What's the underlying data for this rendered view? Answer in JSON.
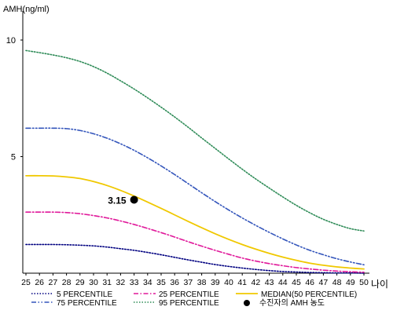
{
  "chart_data": {
    "type": "line",
    "ylabel": "AMH(ng/ml)",
    "xlabel": "나이",
    "x": [
      25,
      26,
      27,
      28,
      29,
      30,
      31,
      32,
      33,
      34,
      35,
      36,
      37,
      38,
      39,
      40,
      41,
      42,
      43,
      44,
      45,
      46,
      47,
      48,
      49,
      50
    ],
    "x_ticks": [
      "25",
      "26",
      "27",
      "28",
      "29",
      "30",
      "31",
      "32",
      "33",
      "34",
      "35",
      "36",
      "37",
      "38",
      "39",
      "40",
      "41",
      "42",
      "43",
      "44",
      "45",
      "46",
      "47",
      "48",
      "49",
      "50"
    ],
    "y_ticks": [
      "5",
      "10"
    ],
    "ylim": [
      0,
      11
    ],
    "xlim": [
      25,
      50
    ],
    "grid": false,
    "legend_position": "bottom",
    "series": [
      {
        "name": "5 PERCENTILE",
        "color": "#000080",
        "dash": "dotted",
        "values": [
          1.23,
          1.23,
          1.23,
          1.22,
          1.2,
          1.17,
          1.12,
          1.05,
          0.98,
          0.89,
          0.79,
          0.68,
          0.57,
          0.47,
          0.37,
          0.29,
          0.22,
          0.16,
          0.11,
          0.07,
          0.05,
          0.03,
          0.02,
          0.01,
          0.01,
          0.0
        ]
      },
      {
        "name": "25 PERCENTILE",
        "color": "#e0189a",
        "dash": "dashdot",
        "values": [
          2.62,
          2.62,
          2.62,
          2.6,
          2.55,
          2.47,
          2.37,
          2.24,
          2.09,
          1.92,
          1.74,
          1.55,
          1.35,
          1.16,
          0.98,
          0.81,
          0.65,
          0.52,
          0.41,
          0.32,
          0.24,
          0.18,
          0.13,
          0.09,
          0.06,
          0.04
        ]
      },
      {
        "name": "MEDIAN(50 PERCENTILE)",
        "color": "#f0c800",
        "dash": "solid",
        "values": [
          4.18,
          4.18,
          4.17,
          4.13,
          4.06,
          3.93,
          3.76,
          3.55,
          3.31,
          3.05,
          2.78,
          2.5,
          2.22,
          1.95,
          1.69,
          1.45,
          1.23,
          1.03,
          0.85,
          0.69,
          0.55,
          0.43,
          0.34,
          0.27,
          0.22,
          0.18
        ]
      },
      {
        "name": "75 PERCENTILE",
        "color": "#3355bb",
        "dash": "dashdotdot",
        "values": [
          6.22,
          6.22,
          6.22,
          6.2,
          6.12,
          5.98,
          5.79,
          5.55,
          5.27,
          4.95,
          4.6,
          4.23,
          3.84,
          3.45,
          3.07,
          2.71,
          2.37,
          2.05,
          1.75,
          1.47,
          1.21,
          0.98,
          0.79,
          0.62,
          0.48,
          0.36
        ]
      },
      {
        "name": "95 PERCENTILE",
        "color": "#2e8b57",
        "dash": "dotted",
        "values": [
          9.55,
          9.46,
          9.36,
          9.24,
          9.08,
          8.86,
          8.58,
          8.25,
          7.9,
          7.52,
          7.12,
          6.7,
          6.26,
          5.8,
          5.35,
          4.9,
          4.46,
          4.04,
          3.65,
          3.27,
          2.91,
          2.59,
          2.31,
          2.09,
          1.91,
          1.81
        ]
      }
    ],
    "marker": {
      "name": "수진자의 AMH 농도",
      "x": 33,
      "y": 3.15,
      "label": "3.15",
      "color": "#000000"
    }
  }
}
